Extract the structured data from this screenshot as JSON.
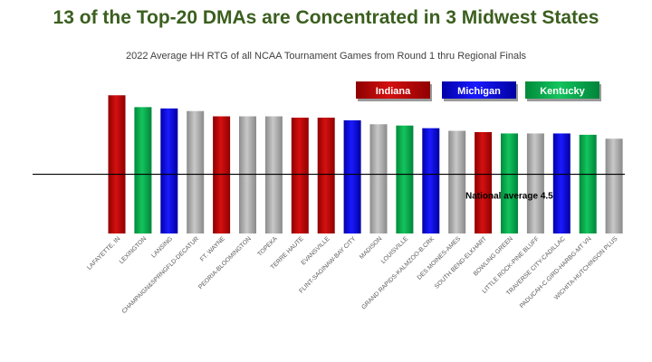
{
  "chart_data": {
    "type": "bar",
    "title": "13 of the Top-20 DMAs are Concentrated in 3 Midwest States",
    "subtitle": "2022 Average HH RTG of all NCAA Tournament Games from Round 1 thru Regional Finals",
    "categories": [
      "LAFAYETTE, IN",
      "LEXINGTON",
      "LANSING",
      "CHAMPAIGN&SPRNGFLD-DECATUR",
      "FT. WAYNE",
      "PEORIA-BLOOMINGTON",
      "TOPEKA",
      "TERRE HAUTE",
      "EVANSVILLE",
      "FLINT-SAGINAW-BAY CITY",
      "MADISON",
      "LOUISVILLE",
      "GRAND RAPIDS-KALMZOO-B.CRK",
      "DES MOINES-AMES",
      "SOUTH BEND-ELKHART",
      "BOWLING GREEN",
      "LITTLE ROCK-PINE BLUFF",
      "TRAVERSE CITY-CADILLAC",
      "PADUCAH-C.GIRD-HARBG-MT VN",
      "WICHITA-HUTCHINSON PLUS"
    ],
    "values": [
      10.5,
      9.6,
      9.5,
      9.3,
      8.9,
      8.9,
      8.9,
      8.8,
      8.8,
      8.6,
      8.3,
      8.2,
      8.0,
      7.8,
      7.7,
      7.6,
      7.6,
      7.6,
      7.5,
      7.2
    ],
    "groups": [
      "Indiana",
      "Kentucky",
      "Michigan",
      "Other",
      "Indiana",
      "Other",
      "Other",
      "Indiana",
      "Indiana",
      "Michigan",
      "Other",
      "Kentucky",
      "Michigan",
      "Other",
      "Indiana",
      "Kentucky",
      "Other",
      "Michigan",
      "Kentucky",
      "Other"
    ],
    "legend": [
      {
        "name": "Indiana",
        "color": "#c00000"
      },
      {
        "name": "Michigan",
        "color": "#0000e0"
      },
      {
        "name": "Kentucky",
        "color": "#00b050"
      }
    ],
    "other_color": "#a6a6a6",
    "reference_line": {
      "label": "National average 4.5",
      "value": 4.5
    },
    "ylim": [
      0,
      11
    ],
    "legend_position": "top-right",
    "grid": false
  }
}
